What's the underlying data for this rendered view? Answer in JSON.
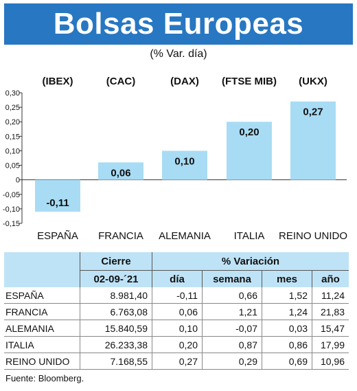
{
  "header": {
    "title": "Bolsas Europeas",
    "subtitle": "(% Var. día)",
    "banner_color": "#2777c2"
  },
  "chart_data": {
    "type": "bar",
    "indices": [
      "(IBEX)",
      "(CAC)",
      "(DAX)",
      "(FTSE MIB)",
      "(UKX)"
    ],
    "categories": [
      "ESPAÑA",
      "FRANCIA",
      "ALEMANIA",
      "ITALIA",
      "REINO UNIDO"
    ],
    "values": [
      -0.11,
      0.06,
      0.1,
      0.2,
      0.27
    ],
    "value_labels": [
      "-0,11",
      "0,06",
      "0,10",
      "0,20",
      "0,27"
    ],
    "yticks": [
      0.3,
      0.25,
      0.2,
      0.15,
      0.1,
      0.05,
      0,
      -0.05,
      -0.1,
      -0.15
    ],
    "ytick_labels": [
      "0,30",
      "0,25",
      "0,20",
      "0,15",
      "0,10",
      "0,05",
      "0",
      "-0,05",
      "-0,10",
      "-0,15"
    ],
    "ylim": [
      -0.15,
      0.3
    ],
    "bar_color": "#a8dcf4",
    "grid": false
  },
  "table": {
    "header_top": {
      "blank": "",
      "cierre": "Cierre",
      "variacion": "% Variación"
    },
    "header_sub": {
      "blank": "",
      "date": "02-09-´21",
      "dia": "día",
      "semana": "semana",
      "mes": "mes",
      "ano": "año"
    },
    "rows": [
      {
        "name": "ESPAÑA",
        "cierre": "8.981,40",
        "dia": "-0,11",
        "semana": "0,66",
        "mes": "1,52",
        "ano": "11,24"
      },
      {
        "name": "FRANCIA",
        "cierre": "6.763,08",
        "dia": "0,06",
        "semana": "1,21",
        "mes": "1,24",
        "ano": "21,83"
      },
      {
        "name": "ALEMANIA",
        "cierre": "15.840,59",
        "dia": "0,10",
        "semana": "-0,07",
        "mes": "0,03",
        "ano": "15,47"
      },
      {
        "name": "ITALIA",
        "cierre": "26.233,38",
        "dia": "0,20",
        "semana": "0,87",
        "mes": "0,86",
        "ano": "17,99"
      },
      {
        "name": "REINO UNIDO",
        "cierre": "7.168,55",
        "dia": "0,27",
        "semana": "0,29",
        "mes": "0,69",
        "ano": "10,96"
      }
    ],
    "header_color": "#bfe3f6"
  },
  "source": "Fuente: Bloomberg."
}
